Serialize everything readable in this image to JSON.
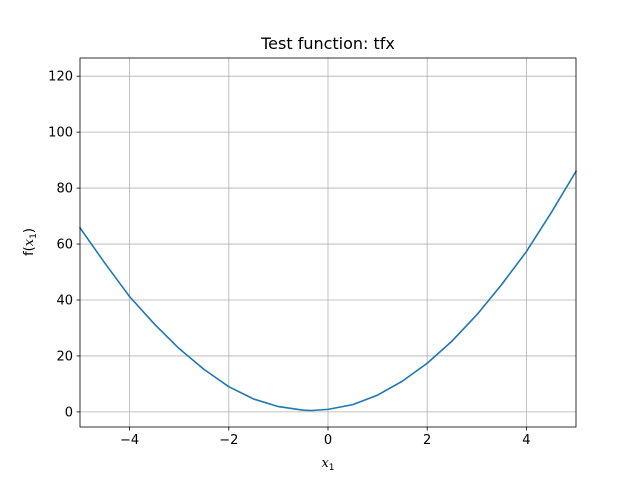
{
  "chart_data": {
    "type": "line",
    "title": "Test function: tfx",
    "xlabel": {
      "base": "x",
      "subscript": "1"
    },
    "ylabel": {
      "prefix": "f(",
      "base": "x",
      "subscript": "1",
      "suffix": ")"
    },
    "xlim": [
      -5,
      5
    ],
    "ylim": [
      -5.4,
      126.5
    ],
    "xticks": [
      -4,
      -2,
      0,
      2,
      4
    ],
    "xtick_labels": [
      "−4",
      "−2",
      "0",
      "2",
      "4"
    ],
    "yticks": [
      0,
      20,
      40,
      60,
      80,
      100,
      120
    ],
    "ytick_labels": [
      "0",
      "20",
      "40",
      "60",
      "80",
      "100",
      "120"
    ],
    "grid": true,
    "series": [
      {
        "color": "#1f77b4",
        "x": [
          -5,
          -4.5,
          -4,
          -3.5,
          -3,
          -2.5,
          -2,
          -1.5,
          -1,
          -0.5,
          -0.33,
          0,
          0.5,
          1,
          1.5,
          2,
          2.5,
          3,
          3.5,
          4,
          4.5,
          5
        ],
        "y": [
          65.8,
          53.2,
          41.2,
          31.4,
          22.6,
          15.2,
          9.0,
          4.6,
          1.9,
          0.6,
          0.5,
          0.9,
          2.6,
          6.0,
          11.0,
          17.4,
          25.3,
          34.7,
          45.5,
          57.3,
          71.2,
          86.0
        ]
      }
    ]
  }
}
